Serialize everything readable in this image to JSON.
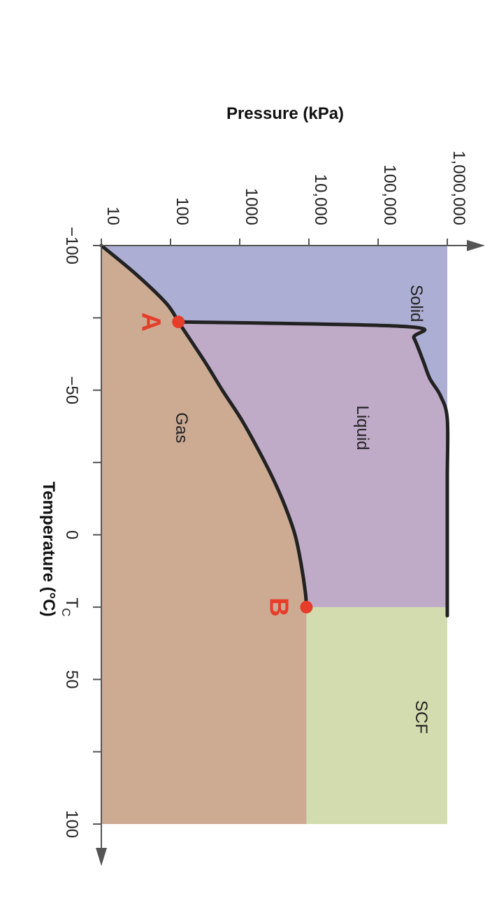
{
  "chart_data": {
    "type": "area",
    "title": "",
    "xlabel": "Temperature (°C)",
    "ylabel": "Pressure (kPa)",
    "x_axis": {
      "range": [
        -100,
        100
      ],
      "ticks": [
        {
          "value": -100,
          "label": "−100"
        },
        {
          "value": -75,
          "label": ""
        },
        {
          "value": -50,
          "label": "−50"
        },
        {
          "value": -25,
          "label": ""
        },
        {
          "value": 0,
          "label": "0"
        },
        {
          "value": 25,
          "label": "TC"
        },
        {
          "value": 50,
          "label": "50"
        },
        {
          "value": 75,
          "label": ""
        },
        {
          "value": 100,
          "label": "100"
        }
      ]
    },
    "y_axis": {
      "scale": "log",
      "range": [
        10,
        1000000
      ],
      "ticks": [
        {
          "value": 10,
          "label": "10"
        },
        {
          "value": 100,
          "label": "100"
        },
        {
          "value": 1000,
          "label": "1000"
        },
        {
          "value": 10000,
          "label": "10,000"
        },
        {
          "value": 100000,
          "label": "100,000"
        },
        {
          "value": 1000000,
          "label": "1,000,000"
        }
      ]
    },
    "boundaries": [
      {
        "name": "sublimation-curve",
        "points": [
          [
            -100,
            10
          ],
          [
            -90,
            32
          ],
          [
            -80,
            87
          ],
          [
            -73.6,
            130
          ]
        ]
      },
      {
        "name": "vaporization-curve",
        "points": [
          [
            -73.6,
            130
          ],
          [
            -60,
            310
          ],
          [
            -50,
            560
          ],
          [
            -40,
            1050
          ],
          [
            -30,
            1800
          ],
          [
            -20,
            2950
          ],
          [
            -10,
            4500
          ],
          [
            0,
            6300
          ],
          [
            10,
            7700
          ],
          [
            20,
            8900
          ],
          [
            25,
            9200
          ]
        ]
      },
      {
        "name": "fusion-curve",
        "points": [
          [
            -73.6,
            130
          ],
          [
            -72,
            250000
          ],
          [
            -68,
            330000
          ],
          [
            -60,
            450000
          ],
          [
            -54,
            560000
          ],
          [
            -48,
            800000
          ],
          [
            -40,
            1050000
          ],
          [
            -20,
            2200000
          ],
          [
            0,
            3500000
          ],
          [
            10,
            5000000
          ],
          [
            25,
            7000000
          ],
          [
            28,
            8000000
          ]
        ]
      }
    ],
    "regions": [
      {
        "name": "Solid",
        "color": "#adaed3"
      },
      {
        "name": "Liquid",
        "color": "#bfabc8"
      },
      {
        "name": "Gas",
        "color": "#cdab93"
      },
      {
        "name": "SCF",
        "color": "#d3dcae"
      }
    ],
    "points": [
      {
        "label": "A",
        "x": -73.6,
        "y": 130
      },
      {
        "label": "B",
        "x": 25,
        "y": 9200
      }
    ],
    "colors": {
      "marker": "#e53d2a",
      "curve": "#222222",
      "axis": "#555555"
    }
  }
}
